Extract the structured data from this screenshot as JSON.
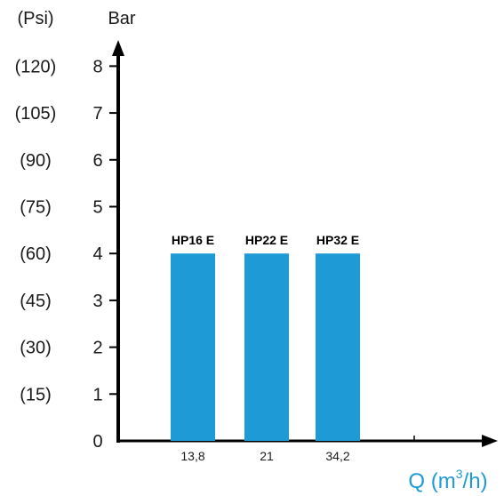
{
  "chart_data": {
    "type": "bar",
    "categories": [
      "13,8",
      "21",
      "34,2"
    ],
    "bar_labels": [
      "HP16 E",
      "HP22 E",
      "HP32 E"
    ],
    "values": [
      4,
      4,
      4
    ],
    "ylim": [
      0,
      8
    ],
    "yticks": [
      "0",
      "1",
      "2",
      "3",
      "4",
      "5",
      "6",
      "7",
      "8"
    ],
    "secondary_yticks": [
      "(15)",
      "(30)",
      "(45)",
      "(60)",
      "(75)",
      "(90)",
      "(105)",
      "(120)"
    ],
    "y_unit": "Bar",
    "y_secondary_unit": "(Psi)",
    "xlabel": {
      "prefix": "Q (m",
      "sup": "3",
      "suffix": "/h)"
    },
    "grid": false,
    "bar_color": "#1e9ad6",
    "xlabel_color": "#1e9ad6",
    "axis_color": "#000000"
  }
}
